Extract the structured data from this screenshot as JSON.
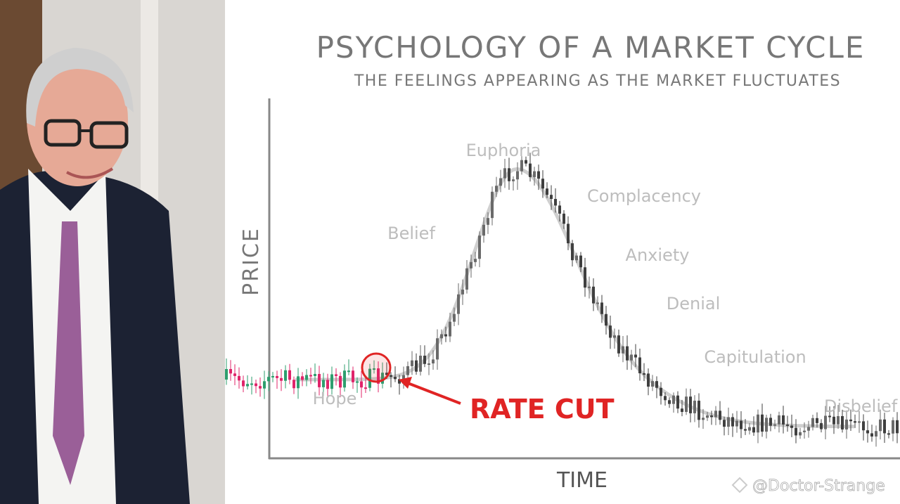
{
  "header": {
    "title": "PSYCHOLOGY OF A MARKET CYCLE",
    "subtitle": "THE FEELINGS APPEARING AS THE MARKET FLUCTUATES"
  },
  "axes": {
    "y_label": "PRICE",
    "x_label": "TIME"
  },
  "phases": [
    {
      "label": "Hope"
    },
    {
      "label": "Belief"
    },
    {
      "label": "Euphoria"
    },
    {
      "label": "Complacency"
    },
    {
      "label": "Anxiety"
    },
    {
      "label": "Denial"
    },
    {
      "label": "Capitulation"
    },
    {
      "label": "Disbelief"
    }
  ],
  "annotation": "RATE CUT",
  "watermark": "@Doctor-Strange"
}
